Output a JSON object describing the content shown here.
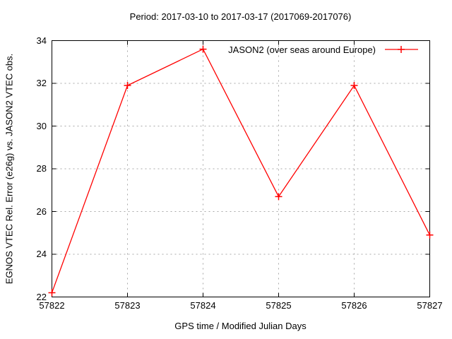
{
  "chart_data": {
    "type": "line",
    "title": "Period: 2017-03-10 to 2017-03-17 (2017069-2017076)",
    "xlabel": "GPS time / Modified Julian Days",
    "ylabel": "EGNOS VTEC Rel. Error (e26g) vs. JASON2 VTEC obs.",
    "series": [
      {
        "name": "JASON2 (over seas around Europe)",
        "color": "#ff0000",
        "marker": "plus",
        "x": [
          57822,
          57823,
          57824,
          57825,
          57826,
          57827
        ],
        "y": [
          22.2,
          31.9,
          33.6,
          26.7,
          31.9,
          24.9
        ]
      }
    ],
    "xlim": [
      57822,
      57827
    ],
    "ylim": [
      22,
      34
    ],
    "xticks": [
      57822,
      57823,
      57824,
      57825,
      57826,
      57827
    ],
    "yticks": [
      22,
      24,
      26,
      28,
      30,
      32,
      34
    ],
    "grid": true,
    "legend_position": "top-right-inside",
    "colors": {
      "line": "#ff0000",
      "grid": "#a8a8a8",
      "axis": "#000000",
      "text": "#000000",
      "background": "#ffffff"
    }
  }
}
